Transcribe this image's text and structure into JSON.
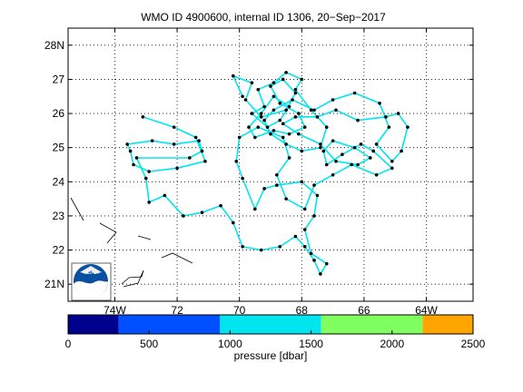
{
  "chart_data": {
    "type": "scatter",
    "title": "WMO ID 4900600, internal ID 1306, 20−Sep−2017",
    "xlim": [
      -75.5,
      -62.5
    ],
    "ylim": [
      20.5,
      28.5
    ],
    "x_ticks": [
      {
        "value": -74,
        "label": "74W"
      },
      {
        "value": -72,
        "label": "72"
      },
      {
        "value": -70,
        "label": "70"
      },
      {
        "value": -68,
        "label": "68"
      },
      {
        "value": -66,
        "label": "66"
      },
      {
        "value": -64,
        "label": "64W"
      }
    ],
    "y_ticks": [
      {
        "value": 21,
        "label": "21N"
      },
      {
        "value": 22,
        "label": "22"
      },
      {
        "value": 23,
        "label": "23"
      },
      {
        "value": 24,
        "label": "24"
      },
      {
        "value": 25,
        "label": "25"
      },
      {
        "value": 26,
        "label": "26"
      },
      {
        "value": 27,
        "label": "27"
      },
      {
        "value": 28,
        "label": "28N"
      }
    ],
    "grid": true,
    "track_color": "#00e5ee",
    "point_color": "#000000",
    "track": [
      [
        -73.1,
        25.9
      ],
      [
        -72.1,
        25.6
      ],
      [
        -71.4,
        25.3
      ],
      [
        -71.1,
        24.6
      ],
      [
        -72.0,
        24.4
      ],
      [
        -72.9,
        24.3
      ],
      [
        -73.4,
        24.5
      ],
      [
        -73.5,
        24.9
      ],
      [
        -73.6,
        25.1
      ],
      [
        -72.8,
        25.2
      ],
      [
        -72.1,
        25.1
      ],
      [
        -71.3,
        25.2
      ],
      [
        -71.2,
        24.9
      ],
      [
        -71.6,
        24.7
      ],
      [
        -73.3,
        24.7
      ],
      [
        -73.0,
        24.1
      ],
      [
        -72.9,
        23.4
      ],
      [
        -72.4,
        23.6
      ],
      [
        -71.8,
        23.0
      ],
      [
        -71.2,
        23.1
      ],
      [
        -70.6,
        23.3
      ],
      [
        -70.2,
        22.8
      ],
      [
        -69.9,
        22.1
      ],
      [
        -69.3,
        22.0
      ],
      [
        -68.7,
        22.1
      ],
      [
        -68.2,
        22.4
      ],
      [
        -67.9,
        22.1
      ],
      [
        -67.6,
        21.7
      ],
      [
        -67.4,
        21.3
      ],
      [
        -67.2,
        21.6
      ],
      [
        -67.7,
        21.9
      ],
      [
        -67.9,
        22.6
      ],
      [
        -67.6,
        23.0
      ],
      [
        -67.5,
        23.6
      ],
      [
        -68.0,
        24.0
      ],
      [
        -68.8,
        23.9
      ],
      [
        -69.2,
        23.8
      ],
      [
        -69.5,
        23.2
      ],
      [
        -69.9,
        24.1
      ],
      [
        -70.1,
        24.6
      ],
      [
        -70.0,
        25.3
      ],
      [
        -69.4,
        25.6
      ],
      [
        -68.6,
        25.3
      ],
      [
        -68.4,
        24.7
      ],
      [
        -68.8,
        24.2
      ],
      [
        -68.5,
        23.5
      ],
      [
        -67.9,
        23.2
      ],
      [
        -67.6,
        23.9
      ],
      [
        -67.0,
        24.2
      ],
      [
        -66.4,
        24.5
      ],
      [
        -65.6,
        24.2
      ],
      [
        -65.1,
        24.4
      ],
      [
        -65.7,
        24.9
      ],
      [
        -66.1,
        25.1
      ],
      [
        -66.7,
        24.8
      ],
      [
        -67.2,
        24.5
      ],
      [
        -67.3,
        24.9
      ],
      [
        -67.0,
        25.2
      ],
      [
        -66.3,
        25.0
      ],
      [
        -65.8,
        24.7
      ],
      [
        -66.2,
        24.5
      ],
      [
        -66.9,
        24.6
      ],
      [
        -67.4,
        25.1
      ],
      [
        -68.1,
        25.4
      ],
      [
        -68.6,
        25.7
      ],
      [
        -68.2,
        25.9
      ],
      [
        -67.5,
        25.9
      ],
      [
        -66.9,
        26.1
      ],
      [
        -66.2,
        25.8
      ],
      [
        -65.3,
        25.9
      ],
      [
        -64.9,
        26.0
      ],
      [
        -64.6,
        25.6
      ],
      [
        -64.8,
        24.9
      ],
      [
        -65.1,
        24.6
      ],
      [
        -65.6,
        25.1
      ],
      [
        -65.2,
        25.6
      ],
      [
        -65.5,
        26.3
      ],
      [
        -66.3,
        26.6
      ],
      [
        -67.0,
        26.4
      ],
      [
        -67.6,
        26.1
      ],
      [
        -68.3,
        26.4
      ],
      [
        -68.9,
        26.1
      ],
      [
        -69.2,
        25.8
      ],
      [
        -69.0,
        25.4
      ],
      [
        -68.5,
        25.1
      ],
      [
        -68.0,
        24.9
      ],
      [
        -67.4,
        25.0
      ],
      [
        -67.2,
        25.6
      ],
      [
        -67.7,
        26.1
      ],
      [
        -68.2,
        26.7
      ],
      [
        -68.0,
        27.0
      ],
      [
        -68.5,
        27.2
      ],
      [
        -68.9,
        26.9
      ],
      [
        -69.4,
        26.7
      ],
      [
        -69.2,
        26.2
      ],
      [
        -69.6,
        26.0
      ],
      [
        -69.1,
        25.6
      ],
      [
        -68.7,
        25.8
      ],
      [
        -68.4,
        26.2
      ],
      [
        -68.9,
        26.5
      ],
      [
        -69.3,
        26.0
      ],
      [
        -69.7,
        25.6
      ],
      [
        -69.5,
        25.3
      ],
      [
        -68.9,
        25.5
      ],
      [
        -68.4,
        25.4
      ],
      [
        -67.9,
        25.6
      ],
      [
        -68.1,
        26.0
      ],
      [
        -68.7,
        26.3
      ],
      [
        -69.0,
        26.8
      ],
      [
        -68.6,
        27.0
      ],
      [
        -68.2,
        26.6
      ],
      [
        -68.5,
        26.1
      ],
      [
        -69.3,
        25.9
      ],
      [
        -69.8,
        26.4
      ],
      [
        -69.6,
        26.9
      ],
      [
        -70.2,
        27.1
      ],
      [
        -69.9,
        26.5
      ]
    ]
  },
  "colorbar": {
    "label": "pressure [dbar]",
    "range": [
      0,
      2500
    ],
    "tick_values": [
      0,
      500,
      1000,
      1500,
      2000,
      2500
    ],
    "tick_labels": [
      "0",
      "500",
      "1000",
      "1500",
      "2000",
      "2500"
    ],
    "bins": [
      {
        "from": 0,
        "to": 312,
        "color": "#00008f"
      },
      {
        "from": 312,
        "to": 938,
        "color": "#0050ff"
      },
      {
        "from": 938,
        "to": 1562,
        "color": "#00e5ee"
      },
      {
        "from": 1562,
        "to": 2188,
        "color": "#80ff60"
      },
      {
        "from": 2188,
        "to": 2500,
        "color": "#ffa500"
      }
    ]
  },
  "logo": {
    "name": "noaa-logo",
    "text": "NOAA"
  }
}
